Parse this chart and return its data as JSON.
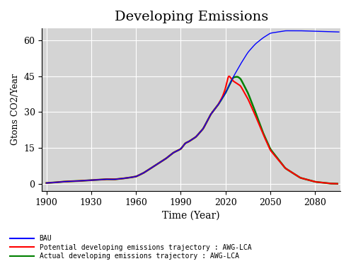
{
  "title": "Developing Emissions",
  "xlabel": "Time (Year)",
  "ylabel": "Gtons CO2/Year",
  "bg_color": "#d4d4d4",
  "xlim": [
    1897,
    2097
  ],
  "ylim": [
    -3,
    65
  ],
  "xticks": [
    1900,
    1930,
    1960,
    1990,
    2020,
    2050,
    2080
  ],
  "yticks": [
    0,
    15,
    30,
    45,
    60
  ],
  "legend": [
    {
      "label": "BAU",
      "color": "#0000ff"
    },
    {
      "label": "Potential developing emissions trajectory : AWG-LCA",
      "color": "#ff0000"
    },
    {
      "label": "Actual developing emissions trajectory : AWG-LCA",
      "color": "#008000"
    }
  ],
  "bau_x": [
    1900,
    1905,
    1910,
    1915,
    1920,
    1925,
    1930,
    1935,
    1940,
    1945,
    1950,
    1955,
    1960,
    1965,
    1970,
    1975,
    1980,
    1985,
    1990,
    1993,
    1995,
    2000,
    2005,
    2010,
    2015,
    2020,
    2025,
    2030,
    2035,
    2040,
    2045,
    2050,
    2060,
    2070,
    2096
  ],
  "bau_y": [
    0.3,
    0.5,
    0.8,
    1.0,
    1.1,
    1.3,
    1.5,
    1.7,
    1.9,
    1.8,
    2.1,
    2.5,
    3.0,
    4.5,
    6.5,
    8.5,
    10.5,
    13.0,
    14.5,
    17.0,
    17.5,
    19.5,
    23.0,
    29.0,
    33.0,
    38.0,
    44.5,
    50.0,
    55.0,
    58.5,
    61.0,
    63.0,
    64.0,
    64.0,
    63.5
  ],
  "pot_x": [
    1900,
    1905,
    1910,
    1915,
    1920,
    1925,
    1930,
    1935,
    1940,
    1945,
    1950,
    1955,
    1960,
    1965,
    1970,
    1975,
    1980,
    1985,
    1990,
    1993,
    1995,
    2000,
    2005,
    2010,
    2015,
    2018,
    2020,
    2022,
    2025,
    2030,
    2035,
    2040,
    2045,
    2050,
    2060,
    2070,
    2080,
    2090,
    2095
  ],
  "pot_y": [
    0.3,
    0.5,
    0.8,
    1.0,
    1.1,
    1.3,
    1.5,
    1.7,
    1.9,
    1.8,
    2.1,
    2.5,
    3.0,
    4.5,
    6.5,
    8.5,
    10.5,
    13.0,
    14.5,
    17.0,
    17.5,
    19.5,
    23.0,
    29.0,
    33.0,
    36.5,
    40.0,
    45.5,
    43.0,
    41.0,
    35.5,
    28.5,
    21.0,
    14.0,
    6.5,
    2.5,
    0.8,
    0.1,
    0.0
  ],
  "act_x": [
    1900,
    1905,
    1910,
    1915,
    1920,
    1925,
    1930,
    1935,
    1940,
    1945,
    1950,
    1955,
    1960,
    1965,
    1970,
    1975,
    1980,
    1985,
    1990,
    1993,
    1995,
    2000,
    2005,
    2010,
    2015,
    2020,
    2025,
    2028,
    2030,
    2035,
    2040,
    2045,
    2050,
    2060,
    2070,
    2080,
    2090,
    2095
  ],
  "act_y": [
    0.3,
    0.5,
    0.8,
    1.0,
    1.1,
    1.3,
    1.5,
    1.7,
    1.9,
    1.8,
    2.1,
    2.5,
    3.0,
    4.5,
    6.5,
    8.5,
    10.5,
    13.0,
    14.5,
    17.0,
    17.5,
    19.5,
    23.0,
    29.0,
    33.0,
    38.0,
    44.5,
    44.8,
    44.0,
    38.0,
    30.0,
    21.5,
    14.5,
    6.5,
    2.5,
    0.8,
    0.1,
    0.0
  ]
}
